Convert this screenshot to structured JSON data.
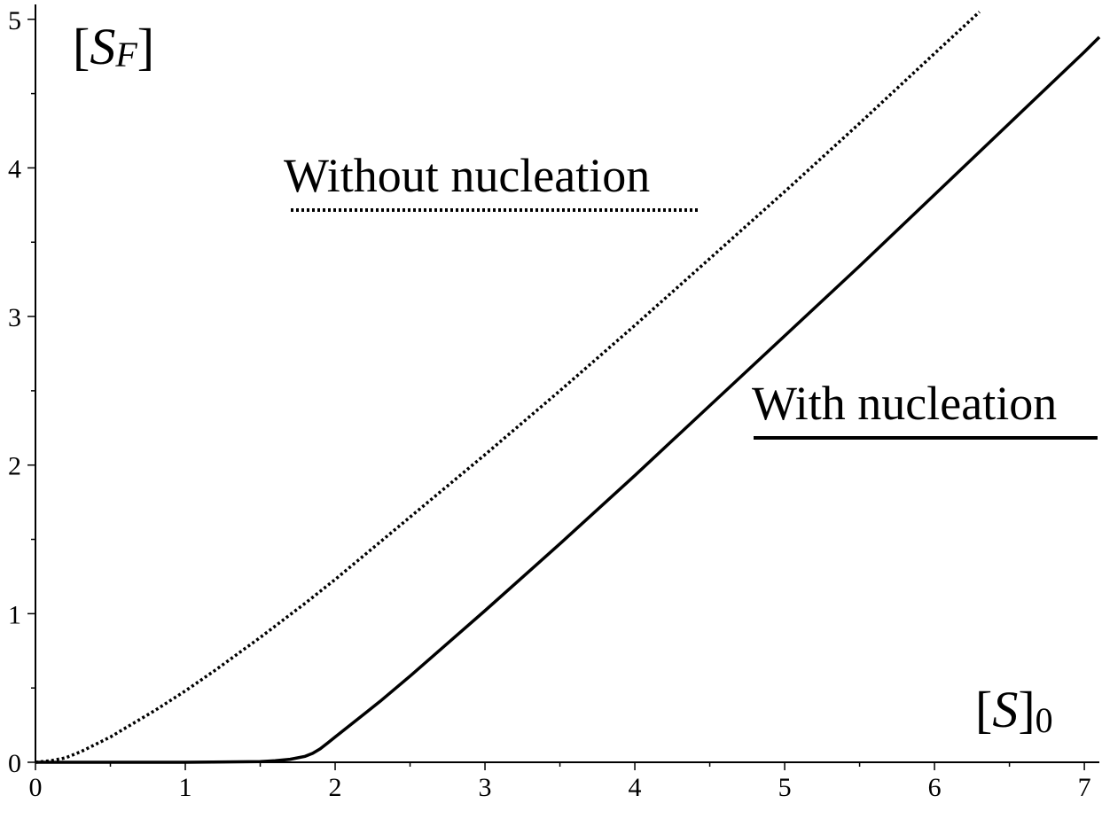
{
  "chart_data": {
    "type": "line",
    "xlabel": {
      "bracket_open": "[",
      "symbol": "S",
      "bracket_close": "]",
      "subscript": "0"
    },
    "ylabel": {
      "bracket_open": "[",
      "symbol": "S",
      "subscript": "F",
      "bracket_close": "]"
    },
    "xlim": [
      0,
      7.1
    ],
    "ylim": [
      0,
      5.1
    ],
    "xticks": [
      0,
      1,
      2,
      3,
      4,
      5,
      6,
      7
    ],
    "yticks": [
      0,
      1,
      2,
      3,
      4,
      5
    ],
    "grid": false,
    "legend_placement": "inline",
    "series": [
      {
        "name": "Without nucleation",
        "style": "dotted",
        "color": "#000000",
        "x": [
          0,
          0.1,
          0.2,
          0.3,
          0.4,
          0.5,
          0.6,
          0.8,
          1.0,
          1.2,
          1.5,
          1.8,
          2.0,
          2.5,
          3.0,
          3.5,
          4.0,
          4.5,
          5.0,
          5.5,
          6.0,
          6.3
        ],
        "y": [
          0,
          0.01,
          0.03,
          0.07,
          0.12,
          0.17,
          0.23,
          0.35,
          0.48,
          0.62,
          0.84,
          1.07,
          1.23,
          1.65,
          2.07,
          2.5,
          2.94,
          3.39,
          3.84,
          4.3,
          4.77,
          5.05
        ]
      },
      {
        "name": "With nucleation",
        "style": "solid",
        "color": "#000000",
        "x": [
          0,
          0.5,
          1.0,
          1.5,
          1.6,
          1.7,
          1.8,
          1.85,
          1.9,
          1.95,
          2.0,
          2.1,
          2.2,
          2.3,
          2.5,
          3.0,
          3.5,
          4.0,
          4.5,
          5.0,
          5.5,
          6.0,
          6.5,
          7.0,
          7.1
        ],
        "y": [
          0,
          0,
          0,
          0.005,
          0.01,
          0.02,
          0.04,
          0.06,
          0.09,
          0.13,
          0.17,
          0.25,
          0.33,
          0.41,
          0.58,
          1.02,
          1.47,
          1.93,
          2.4,
          2.87,
          3.34,
          3.82,
          4.3,
          4.78,
          4.88
        ]
      }
    ]
  }
}
